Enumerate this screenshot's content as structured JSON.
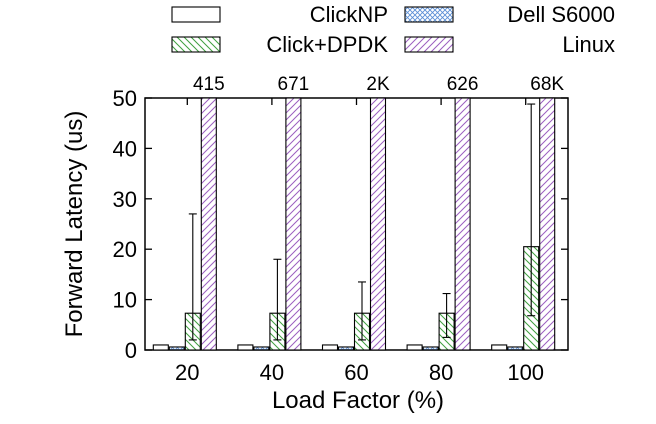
{
  "chart_data": {
    "type": "bar",
    "xlabel": "Load Factor (%)",
    "ylabel": "Forward Latency (us)",
    "ylim": [
      0,
      50
    ],
    "yticks": [
      0,
      10,
      20,
      30,
      40,
      50
    ],
    "categories": [
      "20",
      "40",
      "60",
      "80",
      "100"
    ],
    "legend_position": "top",
    "grid": false,
    "series": [
      {
        "name": "ClickNP",
        "values": [
          1,
          1,
          1,
          1,
          1
        ],
        "pattern": "plain",
        "color": "#ffffff"
      },
      {
        "name": "Dell S6000",
        "values": [
          0.6,
          0.6,
          0.6,
          0.6,
          0.6
        ],
        "pattern": "crosshatch",
        "color": "#5b8fd6"
      },
      {
        "name": "Click+DPDK",
        "values": [
          7.3,
          7.3,
          7.3,
          7.3,
          20.5
        ],
        "error_low": [
          2,
          2,
          2,
          2.5,
          6.8
        ],
        "error_high": [
          27,
          18,
          13.5,
          11.2,
          48.8
        ],
        "pattern": "diagonal-down",
        "color": "#3fa03f"
      },
      {
        "name": "Linux",
        "values": [
          415,
          671,
          2000,
          626,
          68000
        ],
        "overflow_labels": [
          "415",
          "671",
          "2K",
          "626",
          "68K"
        ],
        "pattern": "diagonal-up",
        "color": "#9b5fc0"
      }
    ]
  }
}
